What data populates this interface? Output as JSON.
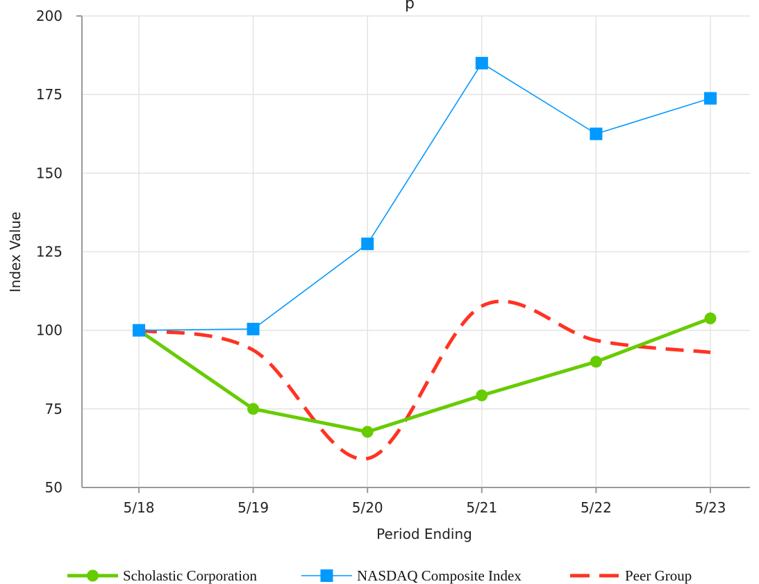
{
  "chart_data": {
    "type": "line",
    "title": "",
    "title_partial_visible": "p",
    "xlabel": "Period Ending",
    "ylabel": "Index Value",
    "categories": [
      "5/18",
      "5/19",
      "5/20",
      "5/21",
      "5/22",
      "5/23"
    ],
    "ylim": [
      50,
      200
    ],
    "yticks": [
      50,
      75,
      100,
      125,
      150,
      175,
      200
    ],
    "grid": true,
    "legend_position": "bottom",
    "series": [
      {
        "name": "Scholastic Corporation",
        "values": [
          100,
          75,
          67.7,
          79.3,
          90,
          103.8
        ],
        "color": "#66cc00",
        "marker": "circle",
        "style": "solid-thick"
      },
      {
        "name": "NASDAQ Composite Index",
        "values": [
          100,
          100.4,
          127.5,
          185,
          162.5,
          173.8
        ],
        "color": "#0099ff",
        "marker": "square",
        "style": "solid-thin"
      },
      {
        "name": "Peer Group",
        "values": [
          100,
          93.7,
          59.2,
          107.7,
          96.8,
          93
        ],
        "color": "#ff3322",
        "marker": "none",
        "style": "dashed-smooth"
      }
    ]
  }
}
